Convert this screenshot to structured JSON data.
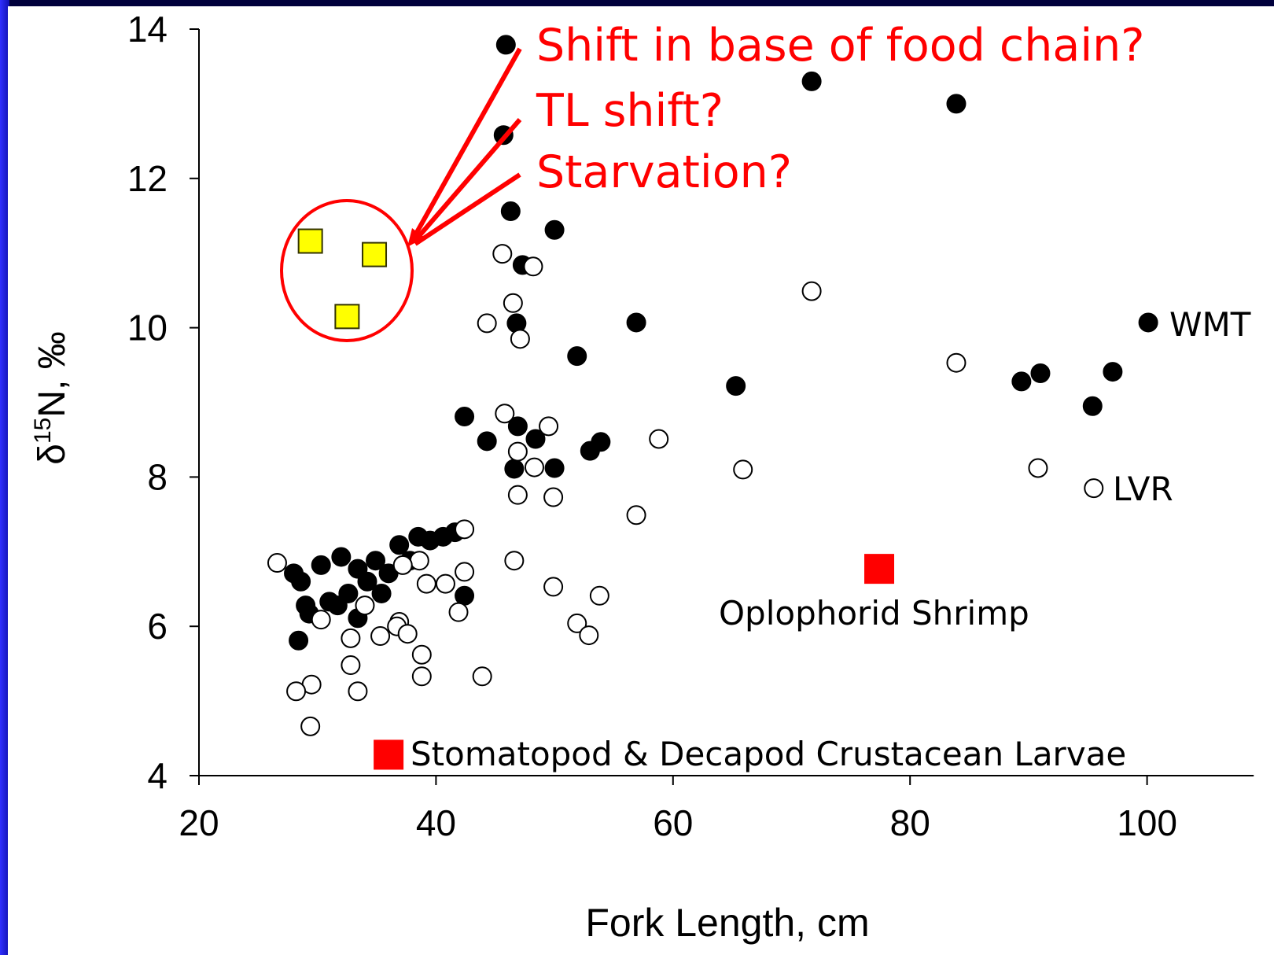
{
  "chart_data": {
    "type": "scatter",
    "xlabel": "Fork Length, cm",
    "ylabel": {
      "symbol": "δ",
      "superscript": "15",
      "text": "N, ‰"
    },
    "xlim": [
      20,
      109
    ],
    "ylim": [
      4,
      14
    ],
    "xticks": [
      20,
      40,
      60,
      80,
      100
    ],
    "yticks": [
      4,
      6,
      8,
      10,
      12,
      14
    ],
    "annotations": [
      "Shift in base of food chain?",
      "TL shift?",
      "Starvation?"
    ],
    "series": [
      {
        "name": "WMT",
        "marker": "circle",
        "color": "#000000",
        "fill": "#000000",
        "x": [
          45.9,
          71.7,
          83.9,
          45.7,
          46.3,
          50.0,
          47.3,
          46.8,
          56.9,
          51.9,
          65.3,
          100.1,
          89.4,
          91.0,
          97.1,
          95.4,
          42.4,
          44.3,
          46.9,
          48.4,
          46.6,
          50.0,
          53.0,
          53.9,
          28.4,
          42.4,
          28.0,
          28.6,
          29.0,
          30.3,
          31.0,
          32.0,
          32.6,
          33.4,
          33.4,
          34.2,
          34.9,
          35.4,
          36.0,
          36.9,
          37.8,
          38.5,
          39.5,
          40.6,
          41.6,
          29.3,
          31.7
        ],
        "values": [
          13.79,
          13.3,
          13.0,
          12.58,
          11.56,
          11.31,
          10.84,
          10.06,
          10.07,
          9.62,
          9.22,
          10.07,
          9.28,
          9.39,
          9.41,
          8.95,
          8.81,
          8.48,
          8.68,
          8.51,
          8.11,
          8.12,
          8.35,
          8.47,
          5.81,
          6.41,
          6.71,
          6.6,
          6.28,
          6.82,
          6.33,
          6.93,
          6.44,
          6.77,
          6.11,
          6.6,
          6.88,
          6.44,
          6.71,
          7.09,
          6.88,
          7.2,
          7.15,
          7.2,
          7.26,
          6.17,
          6.28
        ]
      },
      {
        "name": "LVR",
        "marker": "circle",
        "color": "#000000",
        "fill": "#ffffff",
        "x": [
          26.6,
          45.6,
          48.2,
          46.5,
          44.3,
          47.1,
          71.7,
          83.9,
          45.8,
          49.5,
          46.9,
          48.3,
          58.8,
          65.9,
          90.8,
          95.5,
          46.9,
          49.9,
          56.9,
          46.6,
          49.9,
          53.8,
          51.9,
          52.9,
          42.4,
          42.4,
          41.9,
          40.8,
          39.2,
          38.6,
          37.2,
          36.9,
          36.7,
          37.6,
          38.8,
          38.8,
          35.3,
          34.0,
          32.8,
          32.8,
          33.4,
          30.3,
          29.5,
          28.2,
          29.4,
          43.9
        ],
        "values": [
          6.85,
          10.99,
          10.82,
          10.33,
          10.06,
          9.85,
          10.49,
          9.53,
          8.85,
          8.68,
          8.34,
          8.13,
          8.51,
          8.1,
          8.12,
          7.85,
          7.76,
          7.73,
          7.49,
          6.88,
          6.53,
          6.41,
          6.04,
          5.88,
          7.3,
          6.73,
          6.19,
          6.57,
          6.57,
          6.88,
          6.82,
          6.06,
          6.0,
          5.9,
          5.62,
          5.33,
          5.87,
          6.28,
          5.84,
          5.48,
          5.13,
          6.09,
          5.22,
          5.13,
          4.66,
          5.33
        ]
      },
      {
        "name": "Oplophorid Shrimp",
        "marker": "square",
        "color": "#ff0000",
        "fill": "#ff0000",
        "x": [
          77.4
        ],
        "values": [
          6.77
        ]
      },
      {
        "name": "Stomatopod & Decapod Crustacean Larvae",
        "marker": "square",
        "color": "#ff0000",
        "fill": "#ff0000",
        "x": [
          36.0
        ],
        "values": [
          4.28
        ]
      },
      {
        "marker": "square",
        "color": "#333300",
        "fill": "#ffff00",
        "x": [
          29.4,
          34.8,
          32.5
        ],
        "values": [
          11.16,
          10.98,
          10.15
        ]
      }
    ]
  }
}
